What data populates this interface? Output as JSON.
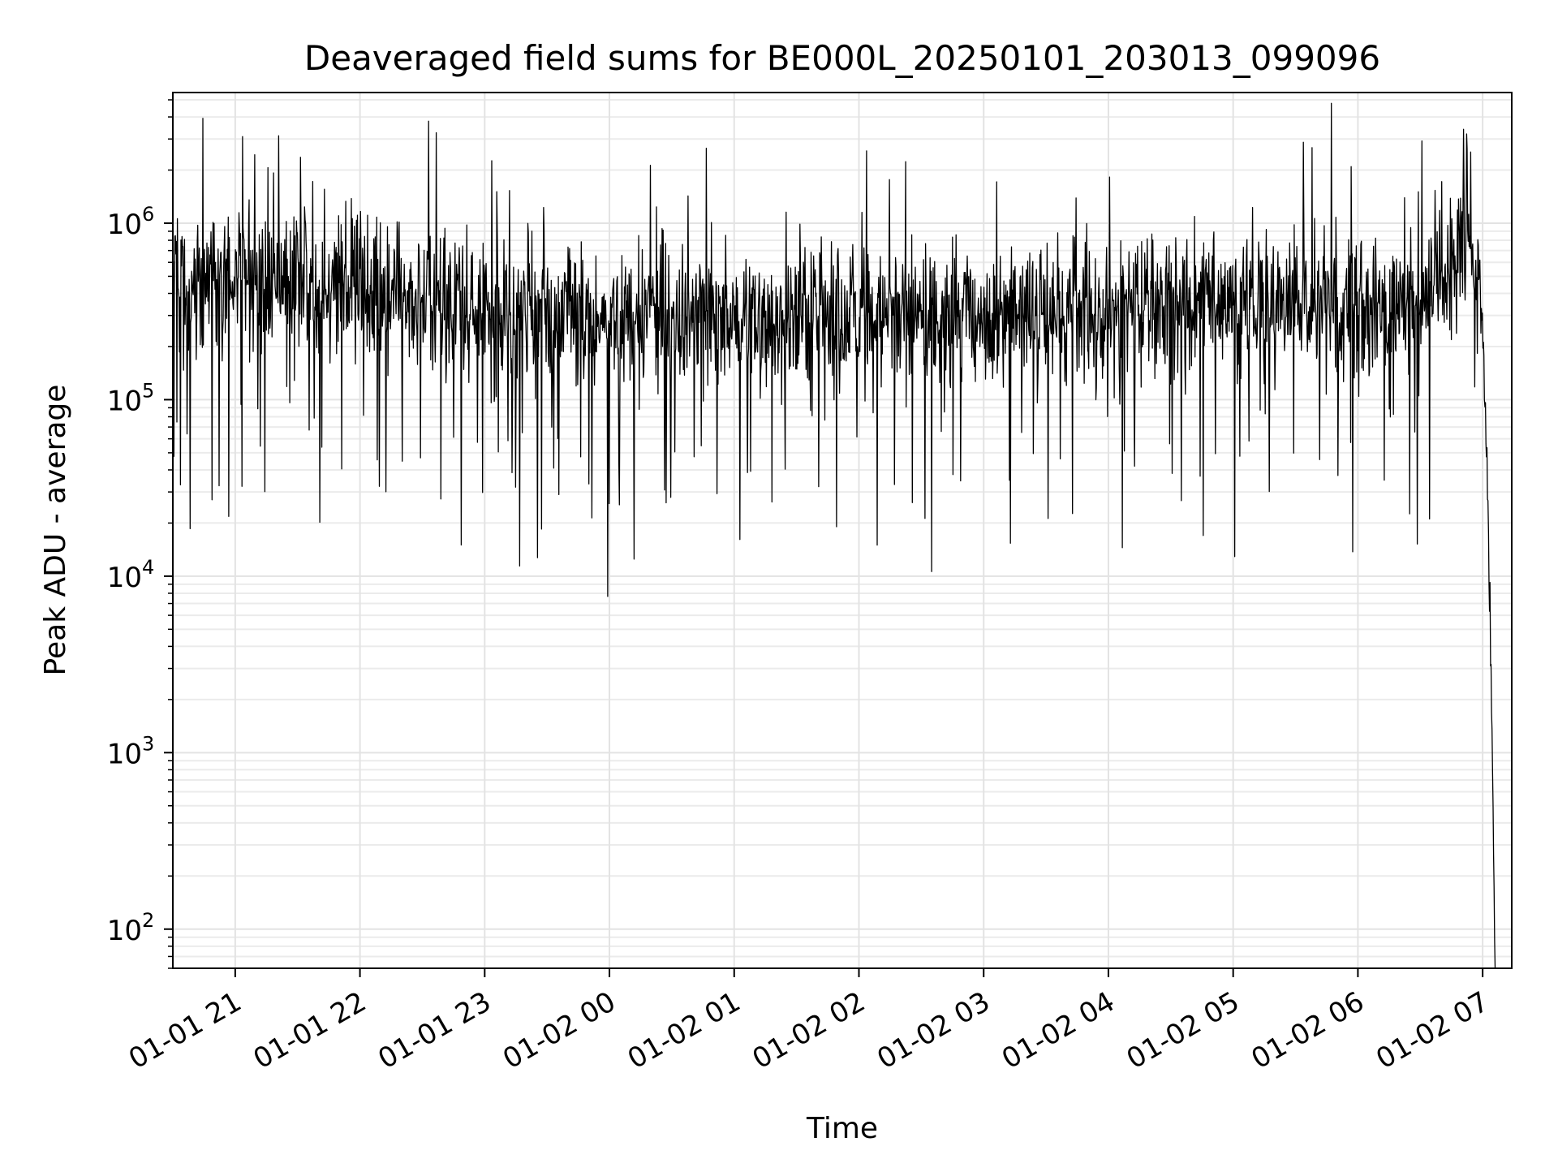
{
  "chart_data": {
    "type": "line",
    "title": "Deaveraged field sums for BE000L_20250101_203013_099096",
    "xlabel": "Time",
    "ylabel": "Peak ADU - average",
    "yscale": "log",
    "xlim": [
      "2025-01-01 20:30",
      "2025-01-02 07:14"
    ],
    "ylim": [
      60,
      5500000
    ],
    "grid": true,
    "xtick_labels": [
      "01-01 21",
      "01-01 22",
      "01-01 23",
      "01-02 00",
      "01-02 01",
      "01-02 02",
      "01-02 03",
      "01-02 04",
      "01-02 05",
      "01-02 06",
      "01-02 07"
    ],
    "xticks": [
      "2025-01-01 21:00",
      "2025-01-01 22:00",
      "2025-01-01 23:00",
      "2025-01-02 00:00",
      "2025-01-02 01:00",
      "2025-01-02 02:00",
      "2025-01-02 03:00",
      "2025-01-02 04:00",
      "2025-01-02 05:00",
      "2025-01-02 06:00",
      "2025-01-02 07:00"
    ],
    "ytick_base": "10",
    "ytick_exponents": [
      "2",
      "3",
      "4",
      "5",
      "6"
    ],
    "yticks": [
      100,
      1000,
      10000,
      100000,
      1000000
    ],
    "series": [
      {
        "color": "#000000",
        "x": [
          "2025-01-01 20:30",
          "2025-01-01 20:45",
          "2025-01-01 21:00",
          "2025-01-01 21:15",
          "2025-01-01 21:30",
          "2025-01-01 21:45",
          "2025-01-01 22:00",
          "2025-01-01 22:15",
          "2025-01-01 22:30",
          "2025-01-01 22:45",
          "2025-01-01 23:00",
          "2025-01-01 23:15",
          "2025-01-01 23:30",
          "2025-01-01 23:45",
          "2025-01-02 00:00",
          "2025-01-02 00:15",
          "2025-01-02 00:30",
          "2025-01-02 00:45",
          "2025-01-02 01:00",
          "2025-01-02 01:15",
          "2025-01-02 01:30",
          "2025-01-02 01:45",
          "2025-01-02 02:00",
          "2025-01-02 02:15",
          "2025-01-02 02:30",
          "2025-01-02 02:45",
          "2025-01-02 03:00",
          "2025-01-02 03:15",
          "2025-01-02 03:30",
          "2025-01-02 03:45",
          "2025-01-02 04:00",
          "2025-01-02 04:15",
          "2025-01-02 04:30",
          "2025-01-02 04:45",
          "2025-01-02 05:00",
          "2025-01-02 05:15",
          "2025-01-02 05:30",
          "2025-01-02 05:45",
          "2025-01-02 06:00",
          "2025-01-02 06:15",
          "2025-01-02 06:30",
          "2025-01-02 06:45",
          "2025-01-02 06:52",
          "2025-01-02 06:56",
          "2025-01-02 07:00",
          "2025-01-02 07:02",
          "2025-01-02 07:04",
          "2025-01-02 07:05",
          "2025-01-02 07:06"
        ],
        "y": [
          500000,
          480000,
          450000,
          470000,
          460000,
          440000,
          480000,
          400000,
          360000,
          340000,
          320000,
          310000,
          300000,
          290000,
          280000,
          270000,
          270000,
          280000,
          280000,
          280000,
          290000,
          290000,
          300000,
          300000,
          290000,
          280000,
          290000,
          290000,
          300000,
          320000,
          330000,
          360000,
          380000,
          390000,
          380000,
          360000,
          350000,
          350000,
          350000,
          350000,
          380000,
          600000,
          1200000,
          900000,
          250000,
          50000,
          3000,
          500,
          60
        ],
        "noise_dex": 0.45
      }
    ]
  }
}
